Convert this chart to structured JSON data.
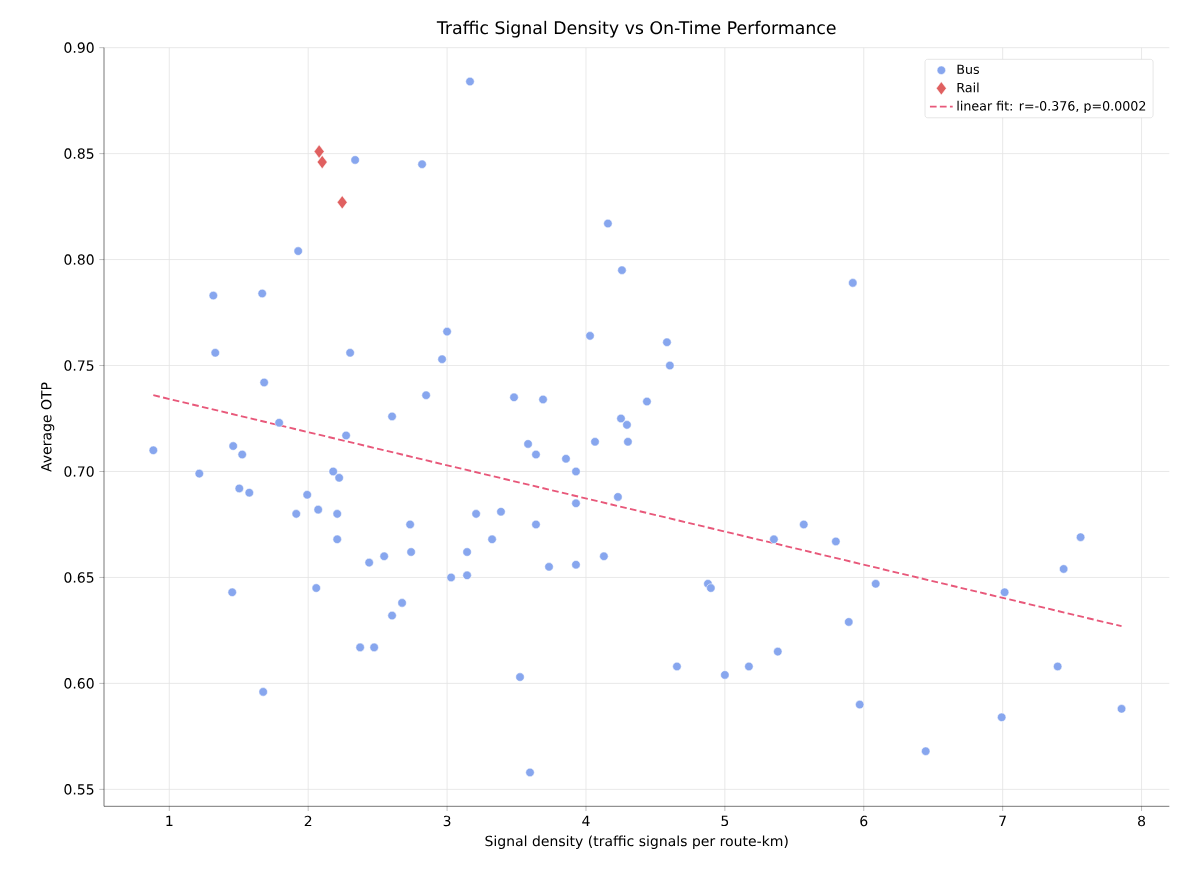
{
  "chart_data": {
    "type": "scatter",
    "title": "Traffic Signal Density vs On-Time Performance",
    "xlabel": "Signal density (traffic signals per route-km)",
    "ylabel": "Average OTP",
    "xlim": [
      0.53,
      8.2
    ],
    "ylim": [
      0.542,
      0.9
    ],
    "xticks": [
      1,
      2,
      3,
      4,
      5,
      6,
      7,
      8
    ],
    "yticks": [
      {
        "value": 0.55,
        "label": "0.55"
      },
      {
        "value": 0.6,
        "label": "0.60"
      },
      {
        "value": 0.65,
        "label": "0.65"
      },
      {
        "value": 0.7,
        "label": "0.70"
      },
      {
        "value": 0.75,
        "label": "0.75"
      },
      {
        "value": 0.8,
        "label": "0.80"
      },
      {
        "value": 0.85,
        "label": "0.85"
      },
      {
        "value": 0.9,
        "label": "0.90"
      }
    ],
    "grid": true,
    "legend": "top right",
    "series": [
      {
        "name": "Bus",
        "color": "#87a6ee",
        "marker": "circle",
        "x": [
          0.885,
          1.216,
          1.317,
          1.331,
          1.46,
          1.453,
          1.504,
          1.525,
          1.576,
          1.669,
          1.683,
          1.676,
          1.791,
          1.914,
          1.928,
          1.993,
          2.058,
          2.072,
          2.18,
          2.209,
          2.223,
          2.209,
          2.273,
          2.302,
          2.338,
          2.374,
          2.439,
          2.475,
          2.547,
          2.604,
          2.604,
          2.676,
          2.734,
          2.741,
          2.82,
          2.849,
          2.964,
          3.0,
          3.029,
          3.144,
          3.144,
          3.165,
          3.209,
          3.324,
          3.388,
          3.482,
          3.525,
          3.583,
          3.597,
          3.64,
          3.64,
          3.691,
          3.734,
          3.856,
          3.928,
          3.928,
          3.928,
          4.029,
          4.065,
          4.129,
          4.158,
          4.23,
          4.252,
          4.259,
          4.295,
          4.302,
          4.439,
          4.583,
          4.604,
          4.655,
          4.878,
          4.899,
          5.0,
          5.173,
          5.353,
          5.381,
          5.568,
          5.799,
          5.892,
          5.921,
          5.971,
          6.086,
          6.446,
          6.993,
          7.014,
          7.396,
          7.439,
          7.561,
          7.856
        ],
        "values": [
          0.71,
          0.699,
          0.783,
          0.756,
          0.712,
          0.643,
          0.692,
          0.708,
          0.69,
          0.784,
          0.742,
          0.596,
          0.723,
          0.68,
          0.804,
          0.689,
          0.645,
          0.682,
          0.7,
          0.68,
          0.697,
          0.668,
          0.717,
          0.756,
          0.847,
          0.617,
          0.657,
          0.617,
          0.66,
          0.726,
          0.632,
          0.638,
          0.675,
          0.662,
          0.845,
          0.736,
          0.753,
          0.766,
          0.65,
          0.662,
          0.651,
          0.884,
          0.68,
          0.668,
          0.681,
          0.735,
          0.603,
          0.713,
          0.558,
          0.708,
          0.675,
          0.734,
          0.655,
          0.706,
          0.7,
          0.685,
          0.656,
          0.764,
          0.714,
          0.66,
          0.817,
          0.688,
          0.725,
          0.795,
          0.722,
          0.714,
          0.733,
          0.761,
          0.75,
          0.608,
          0.647,
          0.645,
          0.604,
          0.608,
          0.668,
          0.615,
          0.675,
          0.667,
          0.629,
          0.789,
          0.59,
          0.647,
          0.568,
          0.584,
          0.643,
          0.608,
          0.654,
          0.669,
          0.588
        ]
      },
      {
        "name": "Rail",
        "color": "#e06060",
        "marker": "diamond",
        "x": [
          2.079,
          2.101,
          2.245
        ],
        "values": [
          0.851,
          0.846,
          0.827
        ]
      },
      {
        "name": "linear fit: r=-0.376, p=0.0002",
        "type": "line",
        "color": "#e8587a",
        "line_style": "dashed",
        "marker": "none",
        "x": [
          0.885,
          7.856
        ],
        "values": [
          0.736,
          0.627
        ]
      }
    ]
  }
}
